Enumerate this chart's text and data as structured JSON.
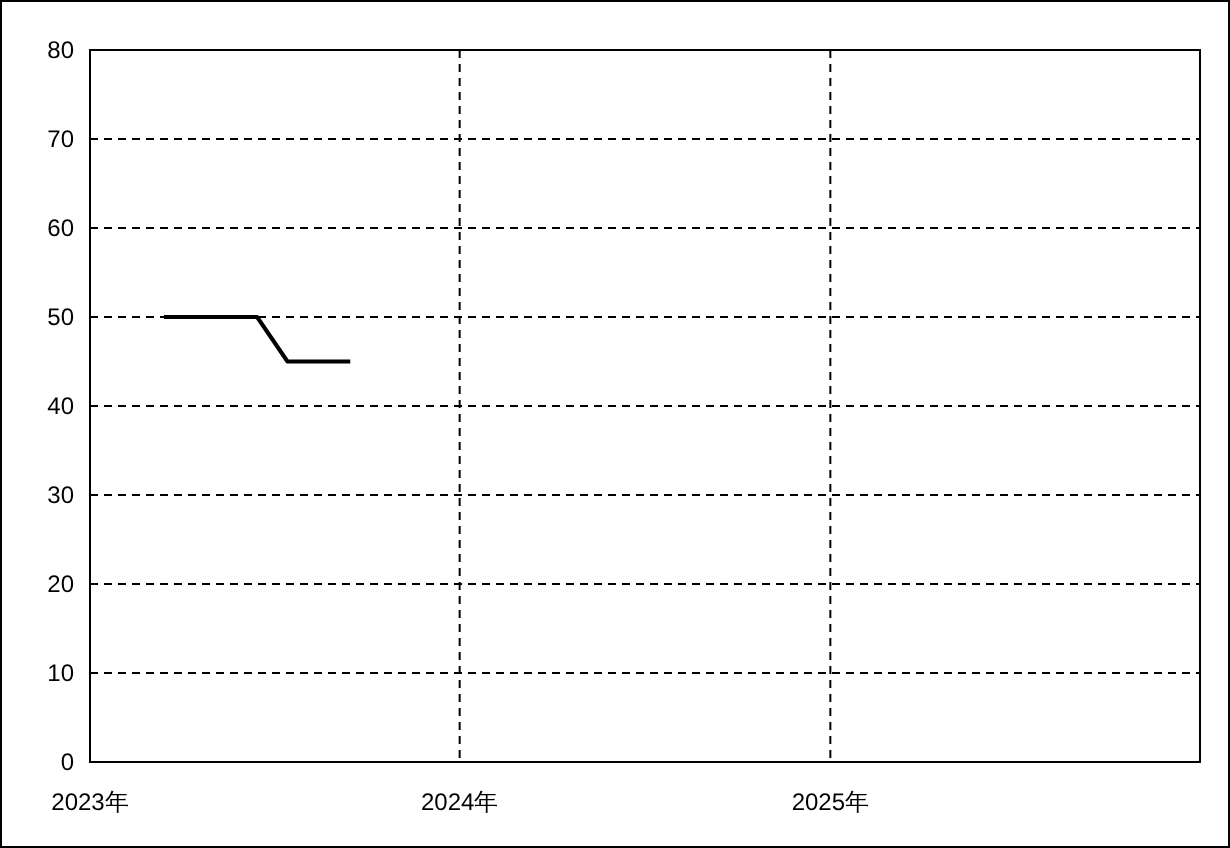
{
  "chart_data": {
    "type": "line",
    "x": [
      "2023-03-15",
      "2023-04-15",
      "2023-05-15",
      "2023-06-15",
      "2023-07-15",
      "2023-08-15",
      "2023-09-15"
    ],
    "series": [
      {
        "color": "#000000",
        "values": [
          50,
          50,
          50,
          50,
          45,
          45,
          45
        ]
      }
    ],
    "xlim": [
      "2023-01-01",
      "2026-01-01"
    ],
    "xticks": [
      {
        "value": "2023-01-01",
        "label": "2023年"
      },
      {
        "value": "2024-01-01",
        "label": "2024年"
      },
      {
        "value": "2025-01-01",
        "label": "2025年"
      }
    ],
    "ylim": [
      0,
      80
    ],
    "yticks": [
      0,
      10,
      20,
      30,
      40,
      50,
      60,
      70,
      80
    ],
    "grid": true,
    "marker": "none",
    "line_style": "solid"
  }
}
